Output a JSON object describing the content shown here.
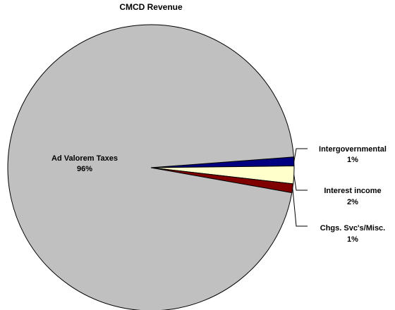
{
  "chart_data": {
    "type": "pie",
    "title": "CMCD Revenue",
    "slices": [
      {
        "label": "Ad Valorem Taxes",
        "pct_label": "96%",
        "value": 96,
        "color": "#c0c0c0"
      },
      {
        "label": "Intergovernmental",
        "pct_label": "1%",
        "value": 1,
        "color": "#000080"
      },
      {
        "label": "Interest income",
        "pct_label": "2%",
        "value": 2,
        "color": "#ffffcc"
      },
      {
        "label": "Chgs. Svc's/Misc.",
        "pct_label": "1%",
        "value": 1,
        "color": "#800000"
      }
    ],
    "legend": "none"
  }
}
